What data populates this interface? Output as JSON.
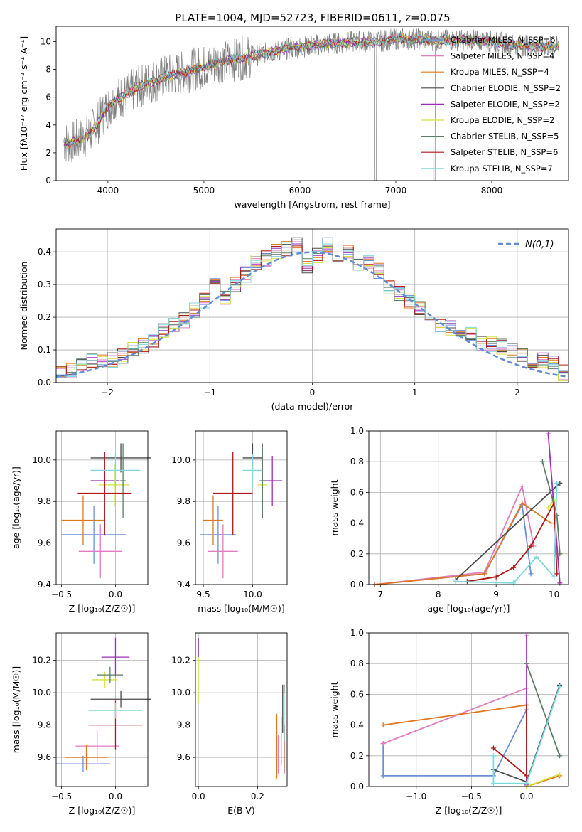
{
  "colors": {
    "c_miles": "#6b8fd6",
    "s_miles": "#e07cbf",
    "k_miles": "#e0761e",
    "c_elodie": "#4a4a4a",
    "s_elodie": "#9b2fb8",
    "k_elodie": "#d6e23e",
    "c_stelib": "#5a7d64",
    "s_stelib": "#b01818",
    "k_stelib": "#7fd8dc",
    "spectrum": "#808080",
    "normal": "#5f8dd3",
    "grid": "#b0b0b0"
  },
  "chart_data": [
    {
      "id": "spectrum",
      "type": "line",
      "title": "PLATE=1004, MJD=52723, FIBERID=0611, z=0.075",
      "xlabel": "wavelength [Angstrom, rest frame]",
      "ylabel": "Flux [fλ10⁻¹⁷ erg cm⁻² s⁻¹ A⁻¹]",
      "xlim": [
        3460,
        8800
      ],
      "ylim": [
        0,
        11.1
      ],
      "xticks": [
        "4000",
        "5000",
        "6000",
        "7000",
        "8000"
      ],
      "yticks": [
        "0",
        "2",
        "4",
        "6",
        "8",
        "10"
      ],
      "grid": false,
      "legend_position": "top-right",
      "continuum": {
        "x": [
          3540,
          3600,
          3700,
          3800,
          3900,
          4000,
          4100,
          4200,
          4300,
          4400,
          4500,
          4600,
          4800,
          5000,
          5200,
          5400,
          5600,
          5800,
          6000,
          6200,
          6400,
          6600,
          6800,
          7000,
          7200,
          7400,
          7600,
          7800,
          8000,
          8200,
          8400,
          8700
        ],
        "y": [
          2.8,
          2.7,
          2.9,
          3.3,
          4.2,
          5.3,
          5.9,
          6.2,
          6.7,
          7.0,
          7.2,
          7.5,
          7.8,
          8.2,
          8.6,
          8.8,
          9.1,
          9.4,
          9.6,
          9.8,
          9.9,
          10.0,
          10.0,
          10.2,
          10.2,
          10.1,
          10.1,
          10.1,
          10.0,
          9.8,
          9.7,
          9.6
        ]
      },
      "series": [
        {
          "name": "Chabrier MILES, N_SSP=6",
          "color_key": "c_miles"
        },
        {
          "name": "Salpeter MILES, N_SSP=4",
          "color_key": "s_miles"
        },
        {
          "name": "Kroupa MILES, N_SSP=4",
          "color_key": "k_miles"
        },
        {
          "name": "Chabrier ELODIE, N_SSP=2",
          "color_key": "c_elodie"
        },
        {
          "name": "Salpeter ELODIE, N_SSP=2",
          "color_key": "s_elodie"
        },
        {
          "name": "Kroupa ELODIE, N_SSP=2",
          "color_key": "k_elodie"
        },
        {
          "name": "Chabrier STELIB, N_SSP=5",
          "color_key": "c_stelib"
        },
        {
          "name": "Salpeter STELIB, N_SSP=6",
          "color_key": "s_stelib"
        },
        {
          "name": "Kroupa STELIB, N_SSP=7",
          "color_key": "k_stelib"
        }
      ]
    },
    {
      "id": "residuals",
      "type": "line",
      "xlabel": "(data-model)/error",
      "ylabel": "Normed distribution",
      "xlim": [
        -2.5,
        2.5
      ],
      "ylim": [
        0,
        0.47
      ],
      "xticks": [
        "−2",
        "−1",
        "0",
        "1",
        "2"
      ],
      "yticks": [
        "0.0",
        "0.1",
        "0.2",
        "0.3",
        "0.4"
      ],
      "grid": true,
      "legend_position": "top-right",
      "legend_label": "N(0,1)",
      "bins": [
        -2.5,
        -2.4,
        -2.3,
        -2.2,
        -2.1,
        -2.0,
        -1.9,
        -1.8,
        -1.7,
        -1.6,
        -1.5,
        -1.4,
        -1.3,
        -1.2,
        -1.1,
        -1.0,
        -0.9,
        -0.8,
        -0.7,
        -0.6,
        -0.5,
        -0.4,
        -0.3,
        -0.2,
        -0.1,
        0.0,
        0.1,
        0.2,
        0.3,
        0.4,
        0.5,
        0.6,
        0.7,
        0.8,
        0.9,
        1.0,
        1.1,
        1.2,
        1.3,
        1.4,
        1.5,
        1.6,
        1.7,
        1.8,
        1.9,
        2.0,
        2.1,
        2.2,
        2.3,
        2.4,
        2.5
      ],
      "base": [
        0.03,
        0.04,
        0.05,
        0.07,
        0.06,
        0.07,
        0.08,
        0.1,
        0.11,
        0.13,
        0.16,
        0.18,
        0.19,
        0.22,
        0.25,
        0.3,
        0.26,
        0.3,
        0.33,
        0.37,
        0.38,
        0.4,
        0.41,
        0.42,
        0.36,
        0.39,
        0.42,
        0.39,
        0.4,
        0.36,
        0.37,
        0.34,
        0.29,
        0.27,
        0.25,
        0.23,
        0.19,
        0.18,
        0.17,
        0.14,
        0.15,
        0.12,
        0.12,
        0.11,
        0.1,
        0.08,
        0.06,
        0.07,
        0.06,
        0.03
      ]
    },
    {
      "id": "age-vs-Z",
      "type": "scatter",
      "xlabel": "Z [log₁₀(Z/Z☉)]",
      "ylabel": "age  [log₁₀(age/yr)]",
      "xlim": [
        -0.55,
        0.3
      ],
      "ylim": [
        9.4,
        10.14
      ],
      "xticks": [
        "−0.5",
        "0.0"
      ],
      "yticks": [
        "9.4",
        "9.6",
        "9.8",
        "10.0"
      ],
      "grid": true,
      "points": [
        {
          "key": "c_miles",
          "x": -0.2,
          "y": 9.64,
          "xe": 0.3,
          "ye": 0.14
        },
        {
          "key": "s_miles",
          "x": -0.14,
          "y": 9.56,
          "xe": 0.2,
          "ye": 0.13
        },
        {
          "key": "k_miles",
          "x": -0.3,
          "y": 9.71,
          "xe": 0.2,
          "ye": 0.12
        },
        {
          "key": "c_elodie",
          "x": 0.05,
          "y": 10.01,
          "xe": 0.28,
          "ye": 0.07
        },
        {
          "key": "s_elodie",
          "x": -0.1,
          "y": 9.9,
          "xe": 0.13,
          "ye": 0.06
        },
        {
          "key": "k_elodie",
          "x": -0.01,
          "y": 9.88,
          "xe": 0.14,
          "ye": 0.1
        },
        {
          "key": "c_stelib",
          "x": 0.07,
          "y": 9.9,
          "xe": 0.03,
          "ye": 0.18
        },
        {
          "key": "s_stelib",
          "x": -0.1,
          "y": 9.84,
          "xe": 0.25,
          "ye": 0.2
        },
        {
          "key": "k_stelib",
          "x": 0.0,
          "y": 9.95,
          "xe": 0.23,
          "ye": 0.08
        }
      ]
    },
    {
      "id": "age-vs-mass",
      "type": "scatter",
      "xlabel": "mass [log₁₀(M/M☉)]",
      "ylabel": "",
      "xlim": [
        9.42,
        10.35
      ],
      "ylim": [
        9.4,
        10.14
      ],
      "xticks": [
        "9.5",
        "10.0"
      ],
      "yticks": [
        "9.4",
        "9.6",
        "9.8",
        "10.0"
      ],
      "grid": true,
      "points": [
        {
          "key": "c_miles",
          "x": 9.65,
          "y": 9.64,
          "xe": 0.18,
          "ye": 0.14
        },
        {
          "key": "s_miles",
          "x": 9.7,
          "y": 9.56,
          "xe": 0.15,
          "ye": 0.13
        },
        {
          "key": "k_miles",
          "x": 9.6,
          "y": 9.71,
          "xe": 0.1,
          "ye": 0.12
        },
        {
          "key": "c_elodie",
          "x": 10.0,
          "y": 10.01,
          "xe": 0.1,
          "ye": 0.07
        },
        {
          "key": "s_elodie",
          "x": 10.2,
          "y": 9.9,
          "xe": 0.1,
          "ye": 0.12
        },
        {
          "key": "k_elodie",
          "x": 10.1,
          "y": 9.88,
          "xe": 0.05,
          "ye": 0.1
        },
        {
          "key": "c_stelib",
          "x": 10.1,
          "y": 9.9,
          "xe": 0.03,
          "ye": 0.18
        },
        {
          "key": "s_stelib",
          "x": 9.8,
          "y": 9.84,
          "xe": 0.2,
          "ye": 0.2
        },
        {
          "key": "k_stelib",
          "x": 10.0,
          "y": 9.95,
          "xe": 0.1,
          "ye": 0.08
        }
      ]
    },
    {
      "id": "weight-vs-age",
      "type": "line",
      "xlabel": "age  [log₁₀(age/yr)]",
      "ylabel": "mass weight",
      "xlim": [
        6.8,
        10.25
      ],
      "ylim": [
        0,
        1
      ],
      "xticks": [
        "7",
        "8",
        "9",
        "10"
      ],
      "yticks": [
        "0.0",
        "0.2",
        "0.4",
        "0.6",
        "0.8",
        "1.0"
      ],
      "grid": true,
      "series": [
        {
          "key": "c_miles",
          "x": [
            6.9,
            8.8,
            9.45,
            9.6
          ],
          "y": [
            0.0,
            0.07,
            0.52,
            0.07
          ]
        },
        {
          "key": "s_miles",
          "x": [
            6.9,
            8.8,
            9.45,
            9.65
          ],
          "y": [
            0.0,
            0.08,
            0.64,
            0.25
          ]
        },
        {
          "key": "k_miles",
          "x": [
            6.9,
            8.8,
            9.45,
            9.95
          ],
          "y": [
            0.0,
            0.07,
            0.53,
            0.4
          ]
        },
        {
          "key": "c_elodie",
          "x": [
            8.3,
            10.1
          ],
          "y": [
            0.03,
            0.66
          ]
        },
        {
          "key": "s_elodie",
          "x": [
            9.9,
            10.1
          ],
          "y": [
            0.98,
            0.01
          ]
        },
        {
          "key": "k_elodie",
          "x": [
            9.9,
            10.0
          ],
          "y": [
            0.5,
            0.55
          ]
        },
        {
          "key": "c_stelib",
          "x": [
            9.8,
            10.05,
            10.1
          ],
          "y": [
            0.8,
            0.45,
            0.2
          ]
        },
        {
          "key": "s_stelib",
          "x": [
            8.5,
            9.0,
            9.3,
            9.6,
            10.0,
            10.05
          ],
          "y": [
            0.02,
            0.05,
            0.11,
            0.25,
            0.53,
            0.07
          ]
        },
        {
          "key": "k_stelib",
          "x": [
            8.3,
            9.3,
            9.7,
            10.0,
            10.05
          ],
          "y": [
            0.02,
            0.01,
            0.18,
            0.05,
            0.66
          ]
        }
      ]
    },
    {
      "id": "mass-vs-Z",
      "type": "scatter",
      "xlabel": "Z [log₁₀(Z/Z☉)]",
      "ylabel": "mass [log₁₀(M/M☉)]",
      "xlim": [
        -0.55,
        0.3
      ],
      "ylim": [
        9.42,
        10.37
      ],
      "xticks": [
        "−0.5",
        "0.0"
      ],
      "yticks": [
        "9.6",
        "9.8",
        "10.0",
        "10.2"
      ],
      "grid": true,
      "points": [
        {
          "key": "c_miles",
          "x": -0.3,
          "y": 9.56,
          "xe": 0.25,
          "ye": 0.05
        },
        {
          "key": "s_miles",
          "x": -0.17,
          "y": 9.67,
          "xe": 0.2,
          "ye": 0.1
        },
        {
          "key": "k_miles",
          "x": -0.27,
          "y": 9.6,
          "xe": 0.2,
          "ye": 0.08
        },
        {
          "key": "c_elodie",
          "x": 0.05,
          "y": 9.96,
          "xe": 0.28,
          "ye": 0.05
        },
        {
          "key": "s_elodie",
          "x": 0.0,
          "y": 10.22,
          "xe": 0.13,
          "ye": 0.12
        },
        {
          "key": "k_elodie",
          "x": -0.1,
          "y": 10.08,
          "xe": 0.12,
          "ye": 0.05
        },
        {
          "key": "c_stelib",
          "x": -0.05,
          "y": 10.11,
          "xe": 0.12,
          "ye": 0.05
        },
        {
          "key": "s_stelib",
          "x": 0.0,
          "y": 9.8,
          "xe": 0.25,
          "ye": 0.15
        },
        {
          "key": "k_stelib",
          "x": 0.0,
          "y": 9.89,
          "xe": 0.25,
          "ye": 0.05
        }
      ]
    },
    {
      "id": "mass-vs-EBV",
      "type": "scatter",
      "xlabel": "E(B-V)",
      "ylabel": "",
      "xlim": [
        -0.01,
        0.3
      ],
      "ylim": [
        9.42,
        10.37
      ],
      "xticks": [
        "0.0",
        "0.2"
      ],
      "yticks": [
        "9.6",
        "9.8",
        "10.0",
        "10.2"
      ],
      "grid": true,
      "points": [
        {
          "key": "c_miles",
          "x": 0.28,
          "y": 9.7,
          "xe": 0.0,
          "ye": 0.15
        },
        {
          "key": "s_miles",
          "x": 0.27,
          "y": 9.62,
          "xe": 0.0,
          "ye": 0.12
        },
        {
          "key": "k_miles",
          "x": 0.265,
          "y": 9.67,
          "xe": 0.0,
          "ye": 0.2
        },
        {
          "key": "c_elodie",
          "x": 0.285,
          "y": 9.9,
          "xe": 0.0,
          "ye": 0.15
        },
        {
          "key": "s_elodie",
          "x": 0.0,
          "y": 10.28,
          "xe": 0.0,
          "ye": 0.06
        },
        {
          "key": "k_elodie",
          "x": 0.0,
          "y": 10.08,
          "xe": 0.0,
          "ye": 0.14
        },
        {
          "key": "c_stelib",
          "x": 0.29,
          "y": 9.85,
          "xe": 0.0,
          "ye": 0.2
        },
        {
          "key": "s_stelib",
          "x": 0.29,
          "y": 9.6,
          "xe": 0.0,
          "ye": 0.1
        },
        {
          "key": "k_stelib",
          "x": 0.29,
          "y": 9.9,
          "xe": 0.0,
          "ye": 0.1
        }
      ]
    },
    {
      "id": "weight-vs-Z",
      "type": "line",
      "xlabel": "Z [log₁₀(Z/Z☉)]",
      "ylabel": "mass weight",
      "xlim": [
        -1.43,
        0.38
      ],
      "ylim": [
        0,
        1
      ],
      "xticks": [
        "−1.0",
        "−0.5",
        "0.0"
      ],
      "yticks": [
        "0.0",
        "0.2",
        "0.4",
        "0.6",
        "0.8",
        "1.0"
      ],
      "grid": true,
      "series": [
        {
          "key": "c_miles",
          "x": [
            -1.3,
            -1.3,
            -0.3,
            0.0,
            0.0
          ],
          "y": [
            0.28,
            0.07,
            0.07,
            0.5,
            0.0
          ]
        },
        {
          "key": "s_miles",
          "x": [
            -1.3,
            0.0
          ],
          "y": [
            0.28,
            0.64
          ]
        },
        {
          "key": "k_miles",
          "x": [
            -1.3,
            0.0,
            0.0,
            0.3
          ],
          "y": [
            0.4,
            0.53,
            0.0,
            0.07
          ]
        },
        {
          "key": "c_elodie",
          "x": [
            -0.3,
            0.0,
            0.3
          ],
          "y": [
            0.11,
            0.03,
            0.66
          ]
        },
        {
          "key": "s_elodie",
          "x": [
            0.0,
            0.0
          ],
          "y": [
            0.98,
            0.01
          ]
        },
        {
          "key": "k_elodie",
          "x": [
            0.0,
            0.3
          ],
          "y": [
            0.0,
            0.08
          ]
        },
        {
          "key": "c_stelib",
          "x": [
            0.0,
            0.3
          ],
          "y": [
            0.8,
            0.2
          ]
        },
        {
          "key": "s_stelib",
          "x": [
            -0.3,
            0.0,
            0.0
          ],
          "y": [
            0.25,
            0.07,
            0.53
          ]
        },
        {
          "key": "k_stelib",
          "x": [
            -0.3,
            -0.3,
            0.0,
            0.3
          ],
          "y": [
            0.2,
            0.02,
            0.02,
            0.65
          ]
        }
      ]
    }
  ]
}
